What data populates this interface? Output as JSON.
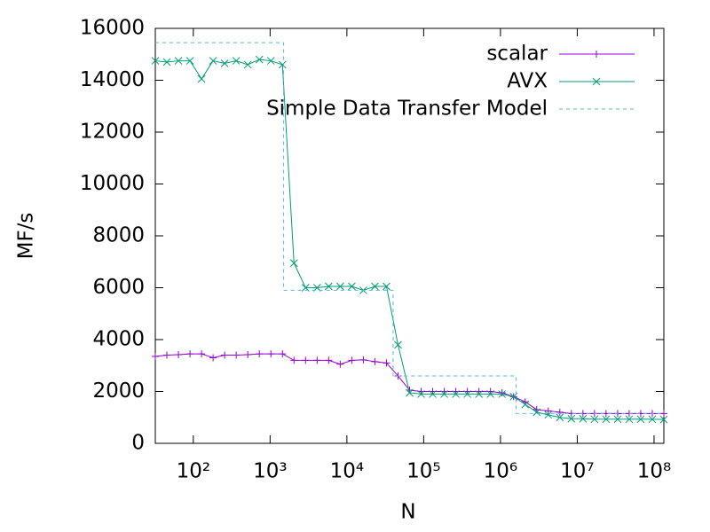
{
  "chart_data": {
    "type": "line",
    "xlabel": "N",
    "ylabel": "MF/s",
    "xscale": "log",
    "xlim": [
      32,
      134217728
    ],
    "ylim": [
      0,
      16000
    ],
    "xticks": [
      {
        "value": 100,
        "label": "10²"
      },
      {
        "value": 1000,
        "label": "10³"
      },
      {
        "value": 10000,
        "label": "10⁴"
      },
      {
        "value": 100000,
        "label": "10⁵"
      },
      {
        "value": 1000000,
        "label": "10⁶"
      },
      {
        "value": 10000000,
        "label": "10⁷"
      },
      {
        "value": 100000000,
        "label": "10⁸"
      }
    ],
    "yticks": [
      0,
      2000,
      4000,
      6000,
      8000,
      10000,
      12000,
      14000,
      16000
    ],
    "grid": false,
    "legend": "upper right",
    "x": [
      32,
      45.25,
      64,
      90.5,
      128,
      181,
      256,
      362,
      512,
      724,
      1024,
      1448,
      2048,
      2896,
      4096,
      5793,
      8192,
      11585,
      16384,
      23170,
      32768,
      46341,
      65536,
      92682,
      131072,
      185364,
      262144,
      370728,
      524288,
      741455,
      1048576,
      1482910,
      2097152,
      2965820,
      4194304,
      5931642,
      8388608,
      11863283,
      16777216,
      23726566,
      33554432,
      47453133,
      67108864,
      94906266,
      134217728
    ],
    "series": [
      {
        "name": "scalar",
        "color": "#9400d3",
        "marker": "plus",
        "values": [
          3350,
          3400,
          3420,
          3450,
          3450,
          3300,
          3400,
          3400,
          3420,
          3450,
          3450,
          3450,
          3200,
          3200,
          3200,
          3200,
          3050,
          3200,
          3220,
          3150,
          3100,
          2600,
          2050,
          2000,
          2000,
          2000,
          2000,
          2000,
          2000,
          2000,
          1950,
          1800,
          1600,
          1300,
          1250,
          1200,
          1150,
          1150,
          1150,
          1150,
          1150,
          1150,
          1150,
          1150,
          1150
        ]
      },
      {
        "name": "AVX",
        "color": "#009e73",
        "marker": "cross",
        "values": [
          14750,
          14700,
          14750,
          14750,
          14050,
          14750,
          14650,
          14750,
          14600,
          14800,
          14750,
          14600,
          6950,
          6000,
          6000,
          6050,
          6050,
          6050,
          5900,
          6050,
          6050,
          3800,
          1950,
          1900,
          1900,
          1900,
          1900,
          1900,
          1900,
          1900,
          1900,
          1800,
          1500,
          1200,
          1100,
          1000,
          950,
          950,
          930,
          930,
          930,
          930,
          930,
          930,
          920
        ]
      },
      {
        "name": "Simple Data Transfer Model",
        "color": "#56b4e9",
        "dashed": true,
        "x": [
          32,
          1500,
          1500,
          40000,
          40000,
          1600000,
          1600000,
          134217728
        ],
        "values": [
          15450,
          15450,
          5900,
          5900,
          2600,
          2600,
          1150,
          1150
        ]
      }
    ]
  }
}
